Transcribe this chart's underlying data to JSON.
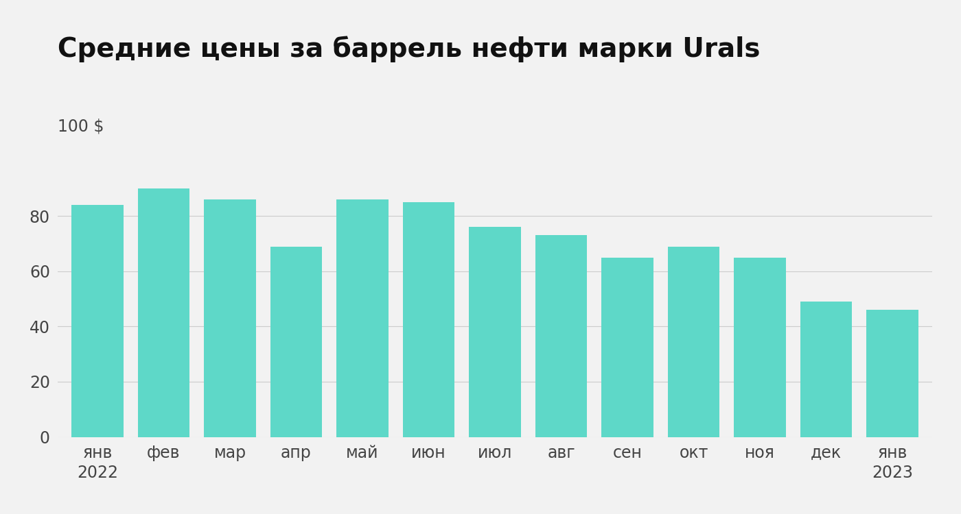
{
  "title": "Средние цены за баррель нефти марки Urals",
  "categories": [
    "янв\n2022",
    "фев",
    "мар",
    "апр",
    "май",
    "июн",
    "июл",
    "авг",
    "сен",
    "окт",
    "ноя",
    "дек",
    "янв\n2023"
  ],
  "values": [
    84,
    90,
    86,
    69,
    86,
    85,
    76,
    73,
    65,
    69,
    65,
    49,
    46
  ],
  "bar_color": "#5ED8C8",
  "background_color": "#F2F2F2",
  "ylim": [
    0,
    108
  ],
  "yticks": [
    0,
    20,
    40,
    60,
    80
  ],
  "title_fontsize": 28,
  "tick_fontsize": 17,
  "label_100_fontsize": 17
}
